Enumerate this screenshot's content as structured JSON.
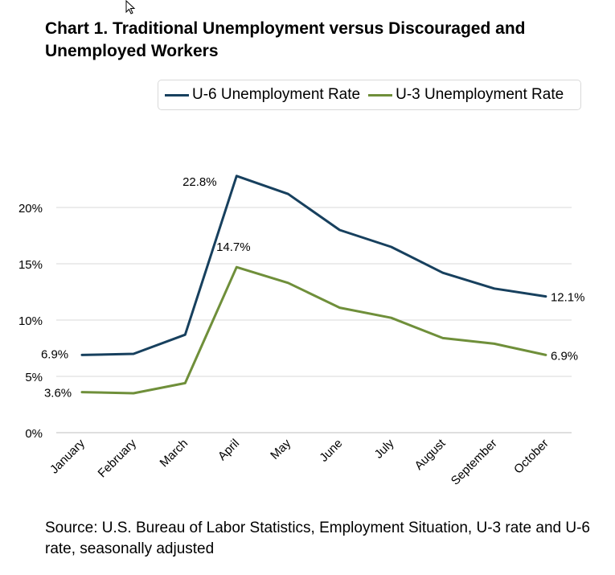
{
  "chart_data": {
    "type": "line",
    "title": "Chart 1. Traditional Unemployment versus Discouraged and Unemployed Workers",
    "source": "Source: U.S. Bureau of Labor Statistics, Employment Situation, U-3 rate and U-6 rate, seasonally adjusted",
    "categories": [
      "January",
      "February",
      "March",
      "April",
      "May",
      "June",
      "July",
      "August",
      "September",
      "October"
    ],
    "series": [
      {
        "name": "U-6 Unemployment Rate",
        "color": "#17405e",
        "values": [
          6.9,
          7.0,
          8.7,
          22.8,
          21.2,
          18.0,
          16.5,
          14.2,
          12.8,
          12.1
        ]
      },
      {
        "name": "U-3 Unemployment Rate",
        "color": "#6f8f3a",
        "values": [
          3.6,
          3.5,
          4.4,
          14.7,
          13.3,
          11.1,
          10.2,
          8.4,
          7.9,
          6.9
        ]
      }
    ],
    "data_labels": [
      {
        "series": 0,
        "index": 0,
        "text": "6.9%"
      },
      {
        "series": 0,
        "index": 3,
        "text": "22.8%"
      },
      {
        "series": 0,
        "index": 9,
        "text": "12.1%"
      },
      {
        "series": 1,
        "index": 0,
        "text": "3.6%"
      },
      {
        "series": 1,
        "index": 3,
        "text": "14.7%"
      },
      {
        "series": 1,
        "index": 9,
        "text": "6.9%"
      }
    ],
    "yticks": [
      "0%",
      "5%",
      "10%",
      "15%",
      "20%"
    ],
    "ytick_values": [
      0,
      5,
      10,
      15,
      20
    ],
    "ylim": [
      0,
      25
    ],
    "grid": true,
    "legend_position": "top-right"
  }
}
